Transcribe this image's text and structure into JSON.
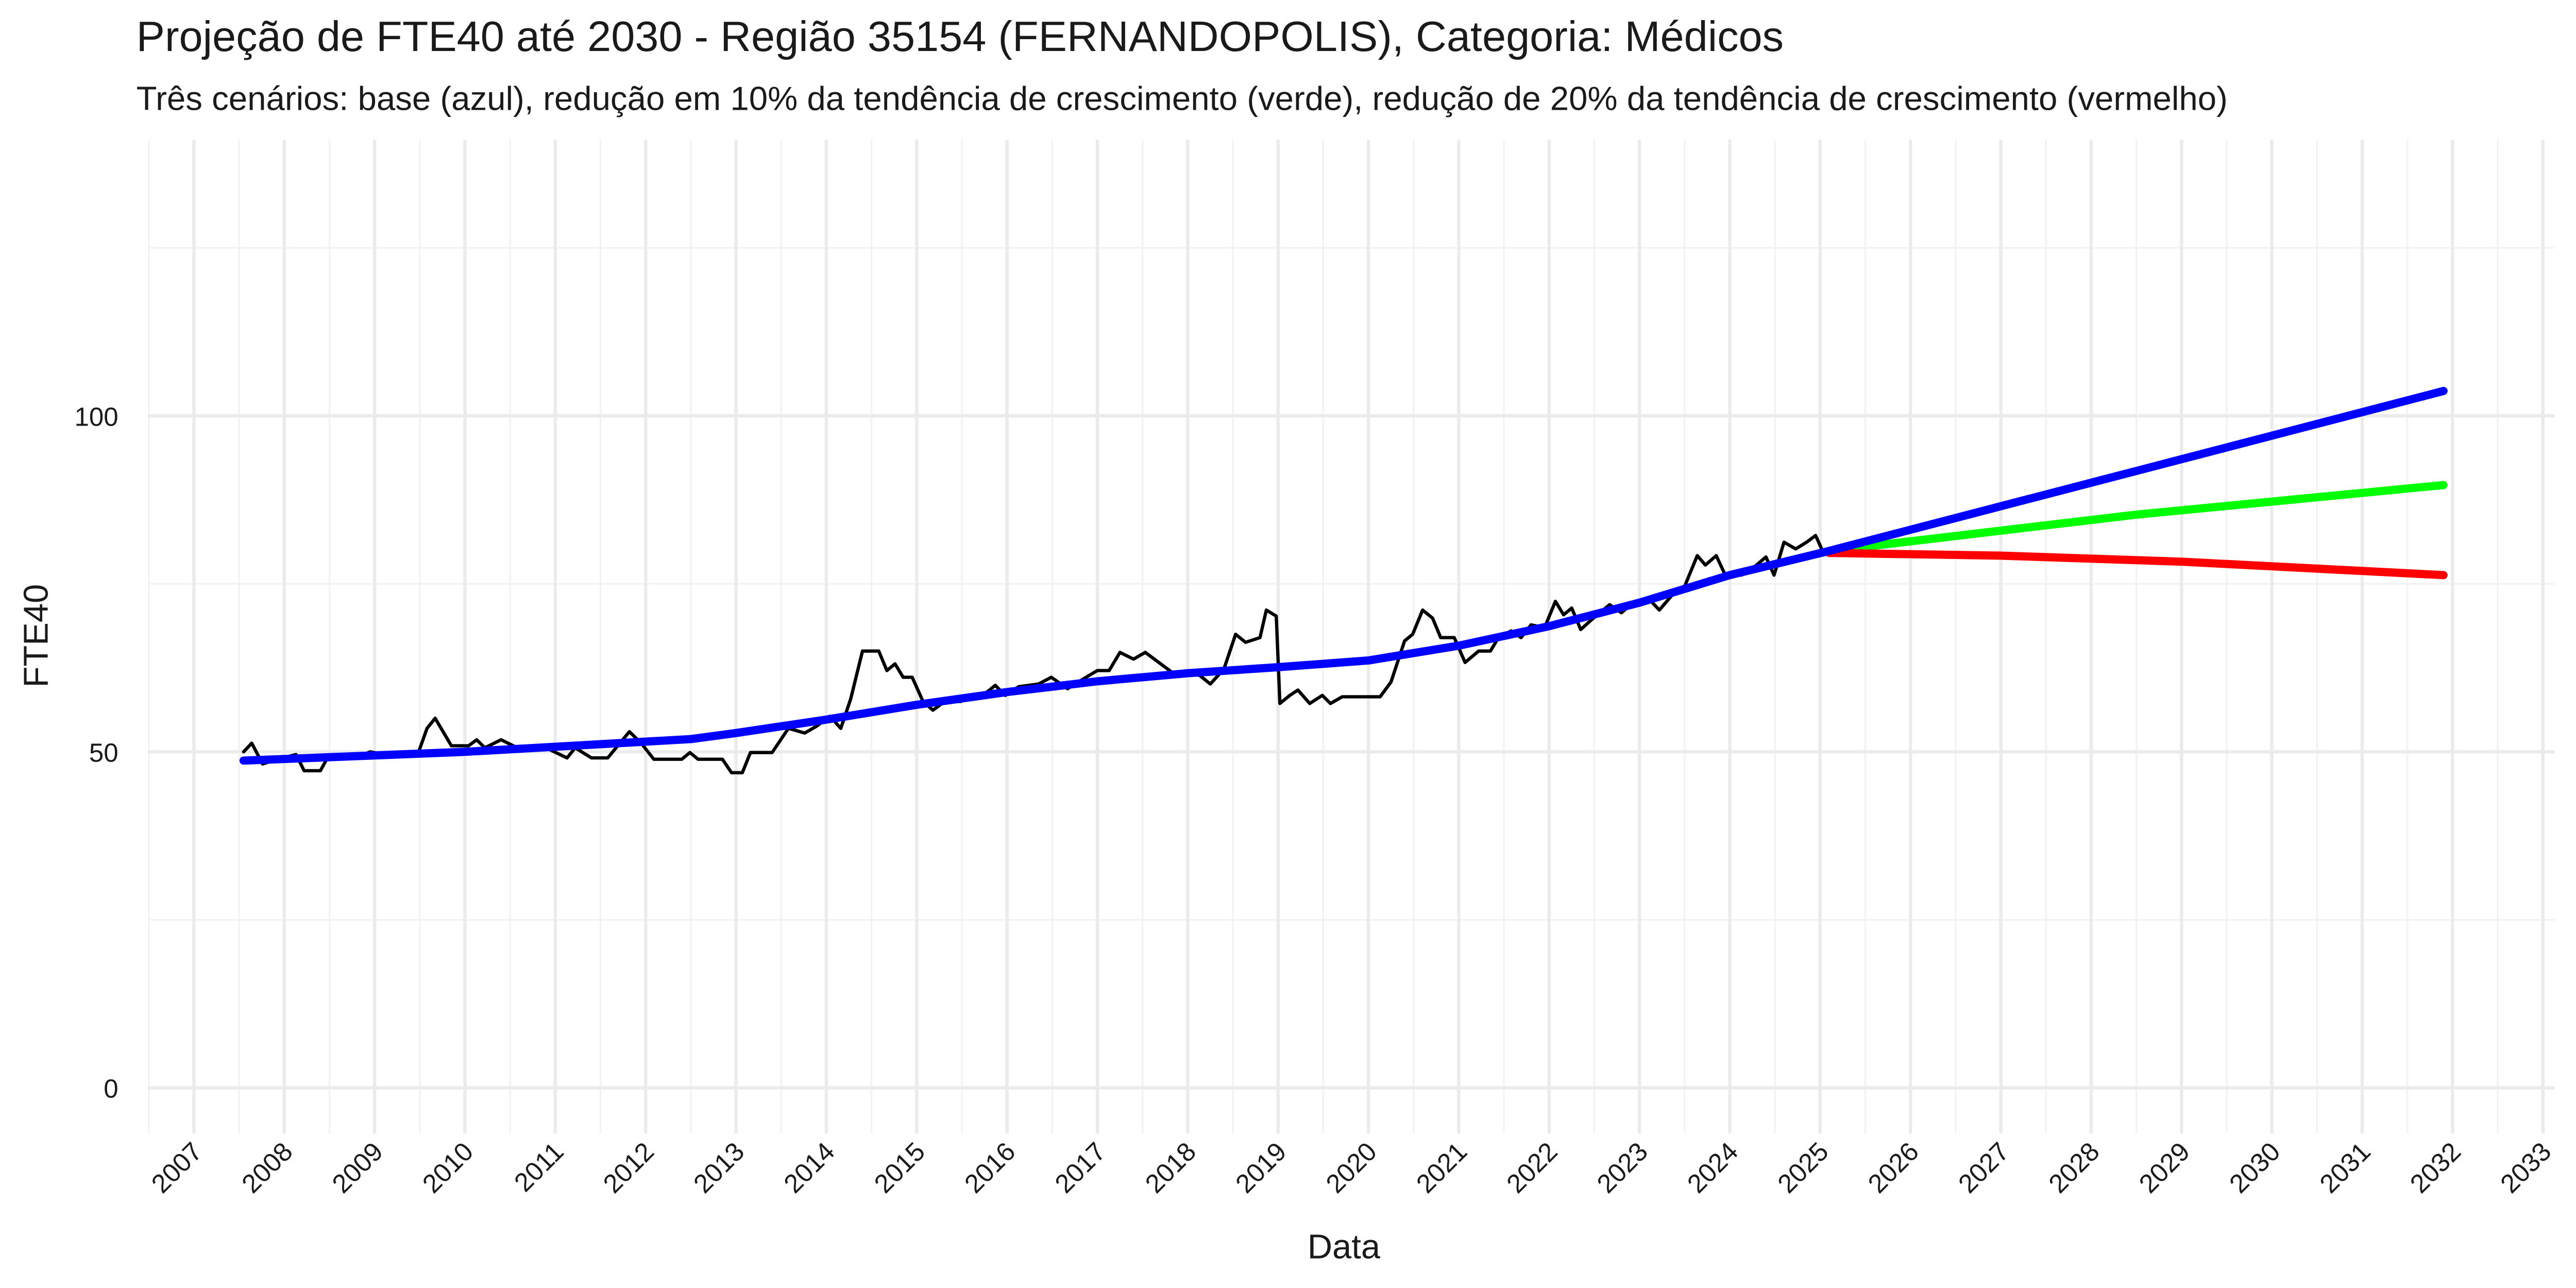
{
  "chart_data": {
    "type": "line",
    "title": "Projeção de FTE40 até 2030 - Região 35154 (FERNANDOPOLIS), Categoria: Médicos",
    "subtitle": "Três cenários: base (azul), redução em 10% da tendência de crescimento (verde), redução de 20% da tendência de crescimento (vermelho)",
    "x_label": "Data",
    "y_label": "FTE40",
    "xlim": [
      2006.49,
      2033.13
    ],
    "xticks": [
      2007,
      2008,
      2009,
      2010,
      2011,
      2012,
      2013,
      2014,
      2015,
      2016,
      2017,
      2018,
      2019,
      2020,
      2021,
      2022,
      2023,
      2024,
      2025,
      2026,
      2027,
      2028,
      2029,
      2030,
      2031,
      2032,
      2033
    ],
    "ylim": [
      -6.8,
      141.1
    ],
    "yticks": [
      0,
      50,
      100
    ],
    "grid": true,
    "series": [
      {
        "color": "#000000",
        "x": [
          2007.55,
          2007.64,
          2007.76,
          2007.95,
          2008.13,
          2008.22,
          2008.4,
          2008.49,
          2008.85,
          2008.95,
          2009.22,
          2009.49,
          2009.58,
          2009.67,
          2009.85,
          2010.04,
          2010.13,
          2010.22,
          2010.4,
          2010.58,
          2010.85,
          2011.13,
          2011.22,
          2011.4,
          2011.58,
          2011.82,
          2011.95,
          2012.09,
          2012.4,
          2012.49,
          2012.58,
          2012.85,
          2012.95,
          2013.07,
          2013.16,
          2013.4,
          2013.58,
          2013.76,
          2013.89,
          2014.04,
          2014.16,
          2014.27,
          2014.4,
          2014.58,
          2014.67,
          2014.76,
          2014.85,
          2014.95,
          2015.07,
          2015.18,
          2015.31,
          2015.49,
          2015.58,
          2015.76,
          2015.87,
          2015.98,
          2016.13,
          2016.35,
          2016.49,
          2016.67,
          2016.85,
          2017.0,
          2017.13,
          2017.25,
          2017.4,
          2017.53,
          2017.85,
          2018.13,
          2018.25,
          2018.4,
          2018.53,
          2018.64,
          2018.8,
          2018.87,
          2018.98,
          2019.02,
          2019.13,
          2019.22,
          2019.35,
          2019.49,
          2019.58,
          2019.71,
          2020.13,
          2020.25,
          2020.4,
          2020.49,
          2020.6,
          2020.71,
          2020.8,
          2020.95,
          2021.07,
          2021.22,
          2021.35,
          2021.44,
          2021.58,
          2021.69,
          2021.8,
          2021.95,
          2022.07,
          2022.16,
          2022.25,
          2022.35,
          2022.49,
          2022.67,
          2022.8,
          2022.95,
          2023.13,
          2023.22,
          2023.36,
          2023.49,
          2023.64,
          2023.73,
          2023.85,
          2023.95,
          2024.13,
          2024.27,
          2024.4,
          2024.49,
          2024.6,
          2024.73,
          2024.85,
          2024.95,
          2025.04
        ],
        "values": [
          50,
          51.3,
          48.2,
          49,
          49.6,
          47.2,
          47.2,
          49.4,
          49.4,
          50,
          49.4,
          50.1,
          53.5,
          55,
          50.9,
          50.9,
          51.8,
          50.6,
          51.8,
          50.6,
          50.9,
          49.1,
          50.6,
          49.1,
          49.1,
          53,
          51.3,
          48.9,
          48.9,
          49.9,
          48.9,
          48.9,
          46.9,
          46.9,
          49.9,
          49.9,
          53.5,
          52.8,
          53.8,
          55.3,
          53.5,
          57.9,
          65,
          65,
          62.1,
          63.1,
          61.1,
          61.1,
          57.5,
          56.2,
          57.5,
          57.5,
          58.2,
          58.7,
          59.9,
          58.4,
          59.7,
          60.1,
          61.1,
          59.4,
          60.9,
          62.1,
          62.1,
          64.8,
          63.8,
          64.8,
          61.6,
          61.4,
          60.1,
          62.3,
          67.5,
          66.3,
          67,
          71.1,
          70.2,
          57.2,
          58.4,
          59.2,
          57.2,
          58.4,
          57.2,
          58.2,
          58.2,
          60.4,
          66.5,
          67.5,
          71.1,
          69.9,
          67,
          67,
          63.3,
          65,
          65,
          67,
          68,
          67,
          68.9,
          68.5,
          72.4,
          70.4,
          71.4,
          68.2,
          69.9,
          71.9,
          70.7,
          72.4,
          72.4,
          71.1,
          73.3,
          74.3,
          79.2,
          77.8,
          79.2,
          76.3,
          76.3,
          77.5,
          79,
          76.3,
          81.2,
          80.2,
          81.2,
          82.2,
          79.5
        ]
      },
      {
        "color": "#00ff00",
        "x": [
          2025.1,
          2028.5,
          2031.9
        ],
        "values": [
          79.9,
          85.3,
          89.7
        ]
      },
      {
        "color": "#ff0000",
        "x": [
          2025.1,
          2027,
          2029,
          2031.9
        ],
        "values": [
          79.6,
          79.2,
          78.3,
          76.3
        ]
      },
      {
        "color": "#0000ff",
        "x": [
          2007.55,
          2010,
          2012.5,
          2013,
          2014,
          2015,
          2016,
          2017,
          2018,
          2019,
          2020,
          2021,
          2022,
          2023,
          2024,
          2025.1,
          2031.9
        ],
        "values": [
          48.7,
          50,
          51.9,
          52.8,
          54.8,
          57,
          58.9,
          60.5,
          61.7,
          62.6,
          63.6,
          65.8,
          68.7,
          72.2,
          76.3,
          79.9,
          103.7
        ]
      }
    ]
  }
}
